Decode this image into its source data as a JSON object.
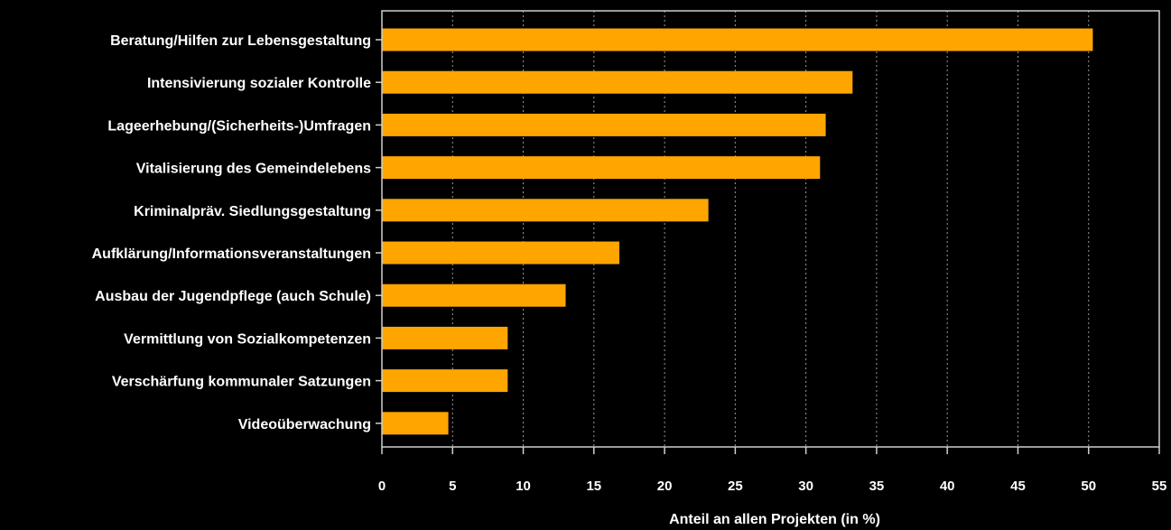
{
  "chart_data": {
    "type": "bar",
    "orientation": "horizontal",
    "categories": [
      "Beratung/Hilfen zur Lebensgestaltung",
      "Intensivierung sozialer Kontrolle",
      "Lageerhebung/(Sicherheits-)Umfragen",
      "Vitalisierung des Gemeindelebens",
      "Kriminalpräv. Siedlungsgestaltung",
      "Aufklärung/Informationsveranstaltungen",
      "Ausbau der Jugendpflege (auch Schule)",
      "Vermittlung von Sozialkompetenzen",
      "Verschärfung kommunaler Satzungen",
      "Videoüberwachung"
    ],
    "values": [
      50.3,
      33.3,
      31.4,
      31.0,
      23.1,
      16.8,
      13.0,
      8.9,
      8.9,
      4.7
    ],
    "title": "",
    "xlabel": "Anteil an allen Projekten (in %)",
    "ylabel": "",
    "xlim": [
      0,
      55
    ],
    "xticks": [
      "0",
      "5",
      "10",
      "15",
      "20",
      "25",
      "30",
      "35",
      "40",
      "45",
      "50",
      "55"
    ],
    "grid": "vertical dotted",
    "legend": "none",
    "colors": {
      "background": "#000000",
      "bar": "#ffa500",
      "axis": "#cfcfcf",
      "grid": "#9a9a9a",
      "text": "#ffffff"
    }
  }
}
